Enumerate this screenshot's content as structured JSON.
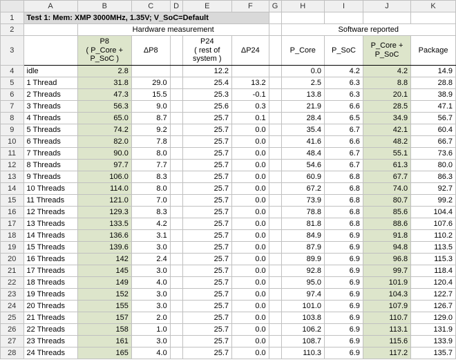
{
  "sheet": {
    "column_letters": [
      "A",
      "B",
      "C",
      "D",
      "E",
      "F",
      "G",
      "H",
      "I",
      "J",
      "K"
    ],
    "row_numbers": [
      1,
      2,
      3,
      4,
      5,
      6,
      7,
      8,
      9,
      10,
      11,
      12,
      13,
      14,
      15,
      16,
      17,
      18,
      19,
      20,
      21,
      22,
      23,
      24,
      25,
      26,
      27,
      28
    ],
    "title_prefix": "Test 1:",
    "title_rest": " Mem: XMP 3000MHz, 1.35V; V_SoC=Default",
    "group_headers": {
      "hw": "Hardware measurement",
      "sw": "Software reported"
    },
    "sub_headers": {
      "B": "P8\n( P_Core + P_SoC )",
      "C": "ΔP8",
      "E": "P24\n( rest of system )",
      "F": "ΔP24",
      "H": "P_Core",
      "I": "P_SoC",
      "J": "P_Core + P_SoC",
      "K": "Package"
    },
    "highlight_cols": [
      "B",
      "J"
    ],
    "highlight_color": "#dde5cb",
    "rows": [
      {
        "A": "idle",
        "B": "2.8",
        "C": "",
        "E": "12.2",
        "F": "",
        "H": "0.0",
        "I": "4.2",
        "J": "4.2",
        "K": "14.9"
      },
      {
        "A": "1 Thread",
        "B": "31.8",
        "C": "29.0",
        "E": "25.4",
        "F": "13.2",
        "H": "2.5",
        "I": "6.3",
        "J": "8.8",
        "K": "28.8"
      },
      {
        "A": "2 Threads",
        "B": "47.3",
        "C": "15.5",
        "E": "25.3",
        "F": "-0.1",
        "H": "13.8",
        "I": "6.3",
        "J": "20.1",
        "K": "38.9"
      },
      {
        "A": "3 Threads",
        "B": "56.3",
        "C": "9.0",
        "E": "25.6",
        "F": "0.3",
        "H": "21.9",
        "I": "6.6",
        "J": "28.5",
        "K": "47.1"
      },
      {
        "A": "4 Threads",
        "B": "65.0",
        "C": "8.7",
        "E": "25.7",
        "F": "0.1",
        "H": "28.4",
        "I": "6.5",
        "J": "34.9",
        "K": "56.7"
      },
      {
        "A": "5 Threads",
        "B": "74.2",
        "C": "9.2",
        "E": "25.7",
        "F": "0.0",
        "H": "35.4",
        "I": "6.7",
        "J": "42.1",
        "K": "60.4"
      },
      {
        "A": "6 Threads",
        "B": "82.0",
        "C": "7.8",
        "E": "25.7",
        "F": "0.0",
        "H": "41.6",
        "I": "6.6",
        "J": "48.2",
        "K": "66.7"
      },
      {
        "A": "7 Threads",
        "B": "90.0",
        "C": "8.0",
        "E": "25.7",
        "F": "0.0",
        "H": "48.4",
        "I": "6.7",
        "J": "55.1",
        "K": "73.6"
      },
      {
        "A": "8 Threads",
        "B": "97.7",
        "C": "7.7",
        "E": "25.7",
        "F": "0.0",
        "H": "54.6",
        "I": "6.7",
        "J": "61.3",
        "K": "80.0"
      },
      {
        "A": "9 Threads",
        "B": "106.0",
        "C": "8.3",
        "E": "25.7",
        "F": "0.0",
        "H": "60.9",
        "I": "6.8",
        "J": "67.7",
        "K": "86.3"
      },
      {
        "A": "10 Threads",
        "B": "114.0",
        "C": "8.0",
        "E": "25.7",
        "F": "0.0",
        "H": "67.2",
        "I": "6.8",
        "J": "74.0",
        "K": "92.7"
      },
      {
        "A": "11 Threads",
        "B": "121.0",
        "C": "7.0",
        "E": "25.7",
        "F": "0.0",
        "H": "73.9",
        "I": "6.8",
        "J": "80.7",
        "K": "99.2"
      },
      {
        "A": "12 Threads",
        "B": "129.3",
        "C": "8.3",
        "E": "25.7",
        "F": "0.0",
        "H": "78.8",
        "I": "6.8",
        "J": "85.6",
        "K": "104.4"
      },
      {
        "A": "13 Threads",
        "B": "133.5",
        "C": "4.2",
        "E": "25.7",
        "F": "0.0",
        "H": "81.8",
        "I": "6.8",
        "J": "88.6",
        "K": "107.6"
      },
      {
        "A": "14 Threads",
        "B": "136.6",
        "C": "3.1",
        "E": "25.7",
        "F": "0.0",
        "H": "84.9",
        "I": "6.9",
        "J": "91.8",
        "K": "110.2"
      },
      {
        "A": "15 Threads",
        "B": "139.6",
        "C": "3.0",
        "E": "25.7",
        "F": "0.0",
        "H": "87.9",
        "I": "6.9",
        "J": "94.8",
        "K": "113.5"
      },
      {
        "A": "16 Threads",
        "B": "142",
        "C": "2.4",
        "E": "25.7",
        "F": "0.0",
        "H": "89.9",
        "I": "6.9",
        "J": "96.8",
        "K": "115.3"
      },
      {
        "A": "17 Threads",
        "B": "145",
        "C": "3.0",
        "E": "25.7",
        "F": "0.0",
        "H": "92.8",
        "I": "6.9",
        "J": "99.7",
        "K": "118.4"
      },
      {
        "A": "18 Threads",
        "B": "149",
        "C": "4.0",
        "E": "25.7",
        "F": "0.0",
        "H": "95.0",
        "I": "6.9",
        "J": "101.9",
        "K": "120.4"
      },
      {
        "A": "19 Threads",
        "B": "152",
        "C": "3.0",
        "E": "25.7",
        "F": "0.0",
        "H": "97.4",
        "I": "6.9",
        "J": "104.3",
        "K": "122.7"
      },
      {
        "A": "20 Threads",
        "B": "155",
        "C": "3.0",
        "E": "25.7",
        "F": "0.0",
        "H": "101.0",
        "I": "6.9",
        "J": "107.9",
        "K": "126.7"
      },
      {
        "A": "21 Threads",
        "B": "157",
        "C": "2.0",
        "E": "25.7",
        "F": "0.0",
        "H": "103.8",
        "I": "6.9",
        "J": "110.7",
        "K": "129.0"
      },
      {
        "A": "22 Threads",
        "B": "158",
        "C": "1.0",
        "E": "25.7",
        "F": "0.0",
        "H": "106.2",
        "I": "6.9",
        "J": "113.1",
        "K": "131.9"
      },
      {
        "A": "23 Threads",
        "B": "161",
        "C": "3.0",
        "E": "25.7",
        "F": "0.0",
        "H": "108.7",
        "I": "6.9",
        "J": "115.6",
        "K": "133.9"
      },
      {
        "A": "24 Threads",
        "B": "165",
        "C": "4.0",
        "E": "25.7",
        "F": "0.0",
        "H": "110.3",
        "I": "6.9",
        "J": "117.2",
        "K": "135.7"
      }
    ]
  }
}
